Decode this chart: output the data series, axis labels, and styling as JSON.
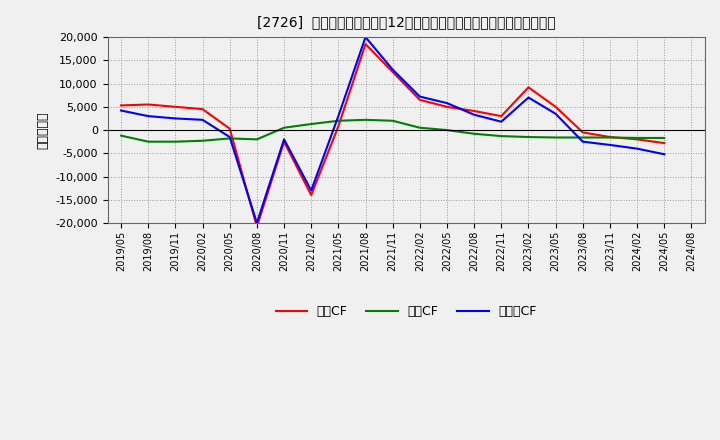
{
  "title": "[2726]  キャッシュフローの12か月移動合計の対前年同期増減額の推移",
  "ylabel": "（百万円）",
  "background_color": "#f0f0f0",
  "plot_bg_color": "#f0f0f0",
  "grid_color": "#999999",
  "ylim": [
    -20000,
    20000
  ],
  "yticks": [
    -20000,
    -15000,
    -10000,
    -5000,
    0,
    5000,
    10000,
    15000,
    20000
  ],
  "x_labels": [
    "2019/05",
    "2019/08",
    "2019/11",
    "2020/02",
    "2020/05",
    "2020/08",
    "2020/11",
    "2021/02",
    "2021/05",
    "2021/08",
    "2021/11",
    "2022/02",
    "2022/05",
    "2022/08",
    "2022/11",
    "2023/02",
    "2023/05",
    "2023/08",
    "2023/11",
    "2024/02",
    "2024/05",
    "2024/08"
  ],
  "operating_cf": [
    5300,
    5500,
    5000,
    4500,
    300,
    -20800,
    -2500,
    -14000,
    800,
    18500,
    12500,
    6500,
    5000,
    4100,
    3000,
    9200,
    5000,
    -500,
    -1500,
    -2000,
    -2800,
    null
  ],
  "investing_cf": [
    -1200,
    -2500,
    -2500,
    -2300,
    -1800,
    -2000,
    500,
    1300,
    2000,
    2200,
    2000,
    500,
    0,
    -800,
    -1300,
    -1500,
    -1600,
    -1600,
    -1600,
    -1700,
    -1700,
    null
  ],
  "free_cf": [
    4200,
    3000,
    2500,
    2200,
    -1500,
    -20000,
    -2000,
    -13000,
    3000,
    20000,
    13000,
    7200,
    5800,
    3300,
    1800,
    7000,
    3500,
    -2500,
    -3200,
    -4000,
    -5200,
    null
  ],
  "line_colors": {
    "operating": "#ff0000",
    "investing": "#008000",
    "free": "#0000ff"
  },
  "legend_labels": [
    "営業CF",
    "投資CF",
    "フリーCF"
  ]
}
